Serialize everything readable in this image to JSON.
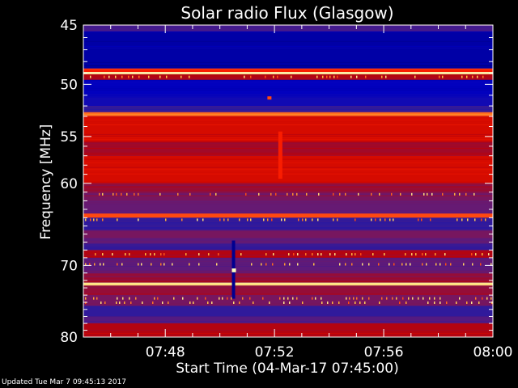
{
  "chart_data": {
    "type": "heatmap",
    "title": "Solar radio Flux (Glasgow)",
    "xlabel": "Start Time (04-Mar-17 07:45:00)",
    "ylabel": "Frequency [MHz]",
    "x_ticks": [
      "07:48",
      "07:52",
      "07:56",
      "08:00"
    ],
    "x_tick_minutes": [
      48,
      52,
      56,
      60
    ],
    "xlim_minutes": [
      45,
      60
    ],
    "y_ticks": [
      45,
      50,
      55,
      60,
      70,
      80
    ],
    "ylim_mhz": [
      45,
      80
    ],
    "colormap": [
      "#000020",
      "#0000c0",
      "#2a1aa0",
      "#6a1a70",
      "#c00000",
      "#ff2000",
      "#ffc040",
      "#ffffc0"
    ],
    "bands": [
      {
        "f0": 45.0,
        "f1": 45.5,
        "level": 0.35
      },
      {
        "f0": 45.5,
        "f1": 48.6,
        "level": 0.12
      },
      {
        "f0": 48.6,
        "f1": 48.9,
        "level": 0.7
      },
      {
        "f0": 48.9,
        "f1": 49.1,
        "level": 0.98
      },
      {
        "f0": 49.1,
        "f1": 49.6,
        "level": 0.55
      },
      {
        "f0": 49.6,
        "f1": 51.2,
        "level": 0.15
      },
      {
        "f0": 51.2,
        "f1": 52.0,
        "level": 0.2
      },
      {
        "f0": 52.0,
        "f1": 52.6,
        "level": 0.3
      },
      {
        "f0": 52.6,
        "f1": 53.0,
        "level": 0.78
      },
      {
        "f0": 53.0,
        "f1": 55.5,
        "level": 0.62
      },
      {
        "f0": 55.5,
        "f1": 57.0,
        "level": 0.52
      },
      {
        "f0": 57.0,
        "f1": 60.0,
        "level": 0.62
      },
      {
        "f0": 60.0,
        "f1": 61.0,
        "level": 0.5
      },
      {
        "f0": 61.0,
        "f1": 62.0,
        "level": 0.45
      },
      {
        "f0": 62.0,
        "f1": 63.5,
        "level": 0.42
      },
      {
        "f0": 63.5,
        "f1": 64.0,
        "level": 0.75
      },
      {
        "f0": 64.0,
        "f1": 65.5,
        "level": 0.3
      },
      {
        "f0": 65.5,
        "f1": 66.5,
        "level": 0.45
      },
      {
        "f0": 66.5,
        "f1": 67.2,
        "level": 0.4
      },
      {
        "f0": 67.2,
        "f1": 68.0,
        "level": 0.32
      },
      {
        "f0": 68.0,
        "f1": 69.0,
        "level": 0.55
      },
      {
        "f0": 69.0,
        "f1": 71.0,
        "level": 0.4
      },
      {
        "f0": 71.0,
        "f1": 72.3,
        "level": 0.5
      },
      {
        "f0": 72.3,
        "f1": 72.7,
        "level": 0.95
      },
      {
        "f0": 72.7,
        "f1": 74.0,
        "level": 0.5
      },
      {
        "f0": 74.0,
        "f1": 75.5,
        "level": 0.45
      },
      {
        "f0": 75.5,
        "f1": 77.0,
        "level": 0.3
      },
      {
        "f0": 77.0,
        "f1": 78.0,
        "level": 0.38
      },
      {
        "f0": 78.0,
        "f1": 80.0,
        "level": 0.55
      }
    ],
    "events": [
      {
        "t": 50.5,
        "f0": 66.8,
        "f1": 74.5,
        "level": 0.1
      },
      {
        "t": 50.5,
        "f0": 70.4,
        "f1": 70.9,
        "level": 1.0
      },
      {
        "t": 52.2,
        "f0": 54.5,
        "f1": 59.5,
        "level": 0.7
      },
      {
        "t": 51.8,
        "f0": 51.1,
        "f1": 51.4,
        "level": 0.75
      }
    ]
  },
  "footer": "Updated Tue Mar  7 09:45:13 2017"
}
